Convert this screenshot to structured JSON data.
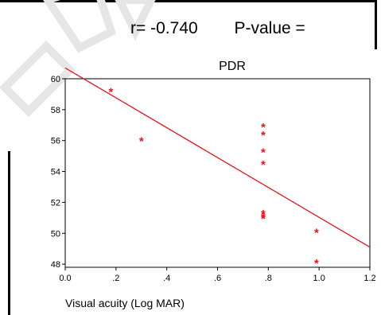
{
  "header": {
    "r_text": "r= -0.740",
    "p_text": "P-value ="
  },
  "chart_data": {
    "type": "scatter",
    "title": "PDR",
    "xlabel": "Visual acuity (Log MAR)",
    "ylabel": "",
    "xlim": [
      0.0,
      1.2
    ],
    "ylim": [
      47.8,
      60.0
    ],
    "x_ticks": [
      0.0,
      0.2,
      0.4,
      0.6,
      0.8,
      1.0,
      1.2
    ],
    "x_tick_labels": [
      "0.0",
      ".2",
      ".4",
      ".6",
      ".8",
      "1.0",
      "1.2"
    ],
    "y_ticks": [
      48,
      50,
      52,
      54,
      56,
      58,
      60
    ],
    "y_tick_labels": [
      "48",
      "50",
      "52",
      "54",
      "56",
      "58",
      "60"
    ],
    "grid": false,
    "marker": "*",
    "points": [
      {
        "x": 0.18,
        "y": 59.2
      },
      {
        "x": 0.3,
        "y": 56.0
      },
      {
        "x": 0.78,
        "y": 56.9
      },
      {
        "x": 0.78,
        "y": 56.4
      },
      {
        "x": 0.78,
        "y": 55.3
      },
      {
        "x": 0.78,
        "y": 54.5
      },
      {
        "x": 0.78,
        "y": 51.3
      },
      {
        "x": 0.78,
        "y": 51.1
      },
      {
        "x": 0.78,
        "y": 51.0
      },
      {
        "x": 0.99,
        "y": 50.1
      },
      {
        "x": 0.99,
        "y": 48.1
      }
    ],
    "fit_line": {
      "x": [
        0.0,
        1.2
      ],
      "y": [
        60.7,
        49.1
      ]
    },
    "colors": {
      "marker": "#e8141c",
      "fit_line": "#e8141c",
      "axis": "#000000"
    }
  }
}
